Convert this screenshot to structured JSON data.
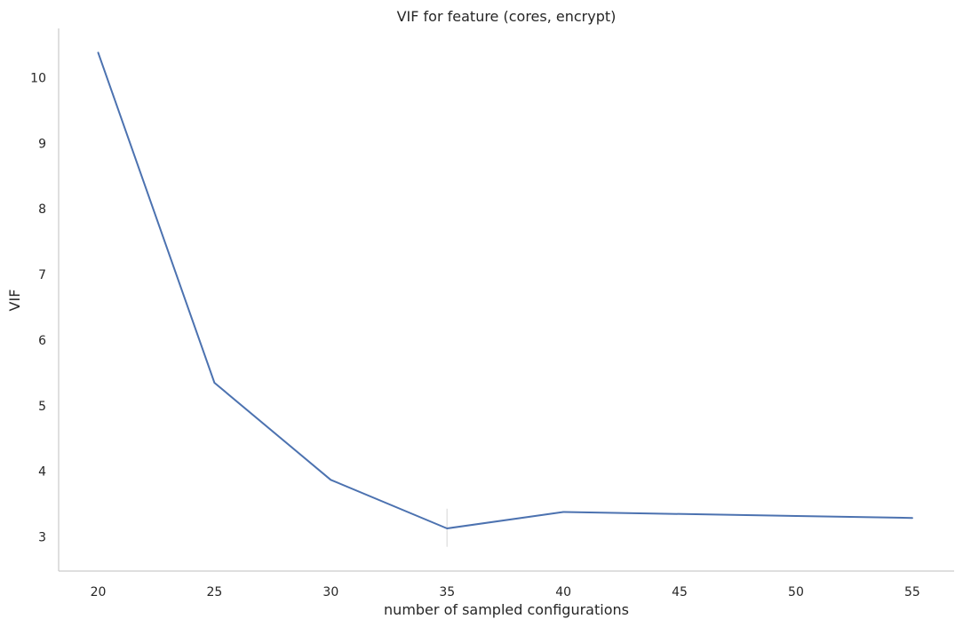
{
  "chart_data": {
    "type": "line",
    "title": "VIF for feature (cores, encrypt)",
    "xlabel": "number of sampled configurations",
    "ylabel": "VIF",
    "xlim": [
      18.3,
      56.8
    ],
    "ylim": [
      2.48,
      10.75
    ],
    "xticks": [
      20,
      25,
      30,
      35,
      40,
      45,
      50,
      55
    ],
    "yticks": [
      3,
      4,
      5,
      6,
      7,
      8,
      9,
      10
    ],
    "grid": false,
    "series": [
      {
        "color": "#4c72b0",
        "x": [
          20,
          25,
          30,
          35,
          40,
          55
        ],
        "y": [
          10.38,
          5.35,
          3.87,
          3.13,
          3.38,
          3.29
        ]
      }
    ],
    "error_bars": [
      {
        "x": 35,
        "low": 2.85,
        "high": 3.43
      }
    ]
  }
}
